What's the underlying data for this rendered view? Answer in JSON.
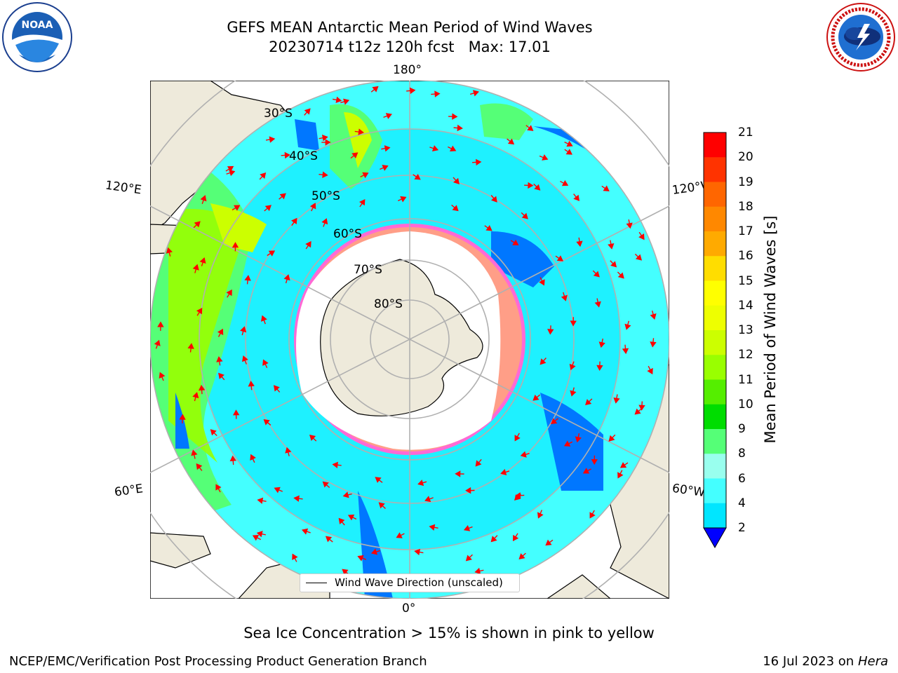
{
  "title": {
    "line1": "GEFS MEAN Antarctic Mean Period of Wind Waves",
    "line2": "20230714 t12z 120h fcst   Max: 17.01"
  },
  "map": {
    "projection": "south polar stereographic",
    "lon_labels": [
      "180°",
      "120°E",
      "120°W",
      "60°E",
      "60°W",
      "0°"
    ],
    "lat_labels": [
      "30°S",
      "40°S",
      "50°S",
      "60°S",
      "70°S",
      "80°S"
    ],
    "legend": "Wind Wave Direction (unscaled)",
    "colors": {
      "land": "#eeeadb",
      "ice_pink": "#ff6ad5",
      "ice_yellow": "#ffd23a",
      "arrow": "#ff0000"
    }
  },
  "colorbar": {
    "label": "Mean Period of Wind Waves [s]",
    "ticks": [
      "21",
      "20",
      "19",
      "18",
      "17",
      "16",
      "15",
      "14",
      "13",
      "12",
      "11",
      "10",
      "9",
      "8",
      "6",
      "4",
      "2"
    ],
    "colors": [
      "#ff0000",
      "#ff3300",
      "#ff6600",
      "#ff8800",
      "#ffaa00",
      "#ffdd00",
      "#ffff00",
      "#eeff00",
      "#ccff00",
      "#99ff00",
      "#55ee00",
      "#00dd00",
      "#55ff77",
      "#99ffee",
      "#44ffff",
      "#00e6ff",
      "#0077ff"
    ],
    "under_color": "#0000ff"
  },
  "note": "Sea Ice Concentration > 15% is shown in pink to yellow",
  "footer": {
    "left": "NCEP/EMC/Verification Post Processing Product Generation Branch",
    "right_prefix": "16 Jul 2023 on ",
    "right_host": "Hera"
  },
  "logos": {
    "left": "NOAA",
    "right": "NATIONAL WEATHER SERVICE"
  }
}
